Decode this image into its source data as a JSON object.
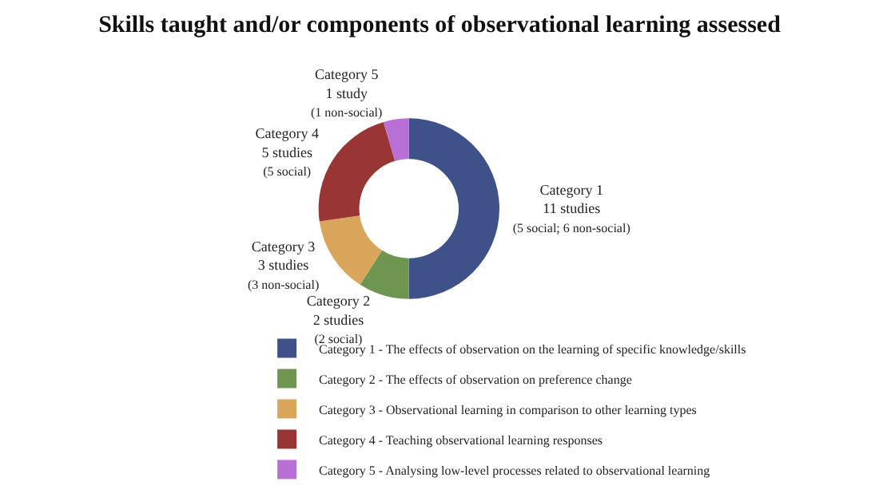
{
  "chart_data": {
    "type": "donut",
    "title": "Skills taught and/or components of observational learning assessed",
    "categories": [
      "Category 1 - The effects of observation on the learning of specific knowledge/skills",
      "Category 2 - The effects of observation on preference change",
      "Category 3 - Observational learning in comparison to other learning types",
      "Category 4 - Teaching observational learning responses",
      "Category 5 - Analysing low-level processes related to observational learning"
    ],
    "values": [
      11,
      2,
      3,
      5,
      1
    ],
    "colors": [
      "#3f5189",
      "#6e9650",
      "#d9a55a",
      "#9a3535",
      "#b86fd6"
    ],
    "value_labels": [
      "Category 1\n11 studies\n(5 social; 6 non-social)",
      "Category 2\n2 studies\n(2 social)",
      "Category 3\n3 studies\n(3 non-social)",
      "Category 4\n5 studies\n(5 social)",
      "Category 5\n1 study\n(1 non-social)"
    ],
    "legend": "bottom"
  }
}
